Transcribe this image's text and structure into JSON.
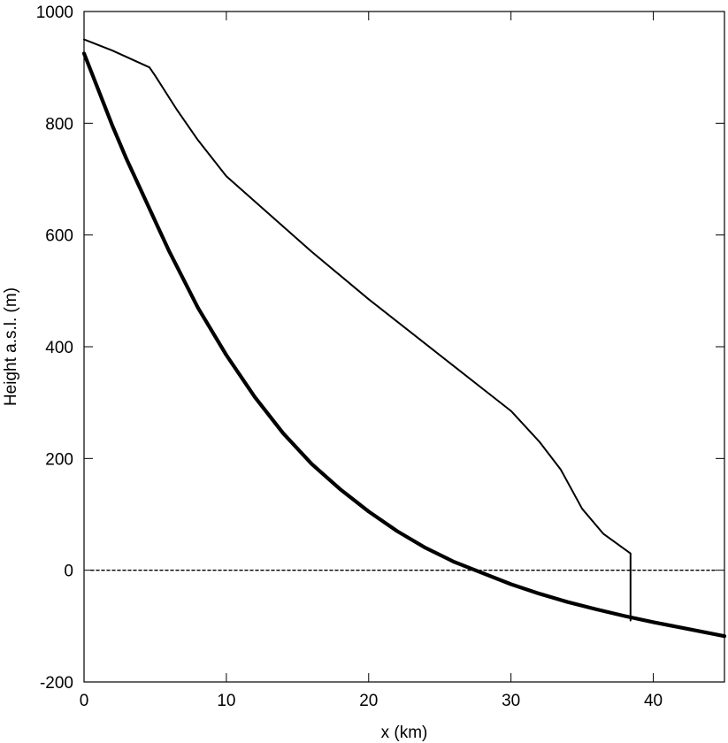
{
  "chart_data": {
    "type": "line",
    "title": "",
    "xlabel": "x (km)",
    "ylabel": "Height a.s.l. (m)",
    "xlim": [
      0,
      45
    ],
    "ylim": [
      -200,
      1000
    ],
    "xticks": [
      0,
      10,
      20,
      30,
      40
    ],
    "yticks": [
      -200,
      0,
      200,
      400,
      600,
      800,
      1000
    ],
    "grid": false,
    "legend": "none",
    "series": [
      {
        "style": "thin-solid",
        "color": "#000000",
        "x": [
          0,
          2,
          4.6,
          5,
          6.5,
          8,
          10,
          12,
          16,
          20,
          24,
          28,
          30,
          32,
          33.5,
          35,
          36.5,
          38.4,
          38.4
        ],
        "y": [
          950,
          930,
          900,
          885,
          825,
          770,
          705,
          660,
          570,
          485,
          405,
          325,
          285,
          230,
          180,
          110,
          65,
          30,
          -90
        ]
      },
      {
        "style": "thick-solid",
        "color": "#000000",
        "x": [
          0,
          1,
          2,
          3,
          4,
          5,
          6,
          8,
          10,
          12,
          14,
          16,
          18,
          20,
          22,
          24,
          26,
          27.5,
          30,
          32,
          34,
          36,
          38,
          40,
          42,
          45
        ],
        "y": [
          925,
          860,
          795,
          735,
          680,
          625,
          570,
          470,
          385,
          310,
          245,
          190,
          145,
          105,
          70,
          40,
          15,
          0,
          -25,
          -42,
          -57,
          -70,
          -82,
          -93,
          -103,
          -118
        ]
      },
      {
        "style": "dotted",
        "color": "#000000",
        "x": [
          0.5,
          44.5
        ],
        "y": [
          0,
          0
        ]
      }
    ]
  }
}
